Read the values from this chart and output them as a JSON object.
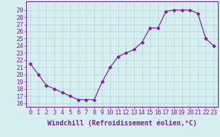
{
  "x": [
    0,
    1,
    2,
    3,
    4,
    5,
    6,
    7,
    8,
    9,
    10,
    11,
    12,
    13,
    14,
    15,
    16,
    17,
    18,
    19,
    20,
    21,
    22,
    23
  ],
  "y": [
    21.5,
    20.0,
    18.5,
    18.0,
    17.5,
    17.0,
    16.5,
    16.5,
    16.5,
    19.0,
    21.0,
    22.5,
    23.0,
    23.5,
    24.5,
    26.5,
    26.5,
    28.8,
    29.0,
    29.0,
    29.0,
    28.5,
    25.0,
    24.0
  ],
  "line_color": "#7b1fa2",
  "marker": "D",
  "marker_size": 2.5,
  "bg_color": "#d6eef0",
  "grid_color": "#b0d4d8",
  "xlabel": "Windchill (Refroidissement éolien,°C)",
  "ylabel": "",
  "title": "",
  "xlim": [
    -0.5,
    23.5
  ],
  "ylim": [
    15.5,
    30.2
  ],
  "yticks": [
    16,
    17,
    18,
    19,
    20,
    21,
    22,
    23,
    24,
    25,
    26,
    27,
    28,
    29
  ],
  "xticks": [
    0,
    1,
    2,
    3,
    4,
    5,
    6,
    7,
    8,
    9,
    10,
    11,
    12,
    13,
    14,
    15,
    16,
    17,
    18,
    19,
    20,
    21,
    22,
    23
  ],
  "tick_label_color": "#7b1fa2",
  "axis_color": "#7b1fa2",
  "font_size": 6.5,
  "xlabel_fontsize": 7
}
